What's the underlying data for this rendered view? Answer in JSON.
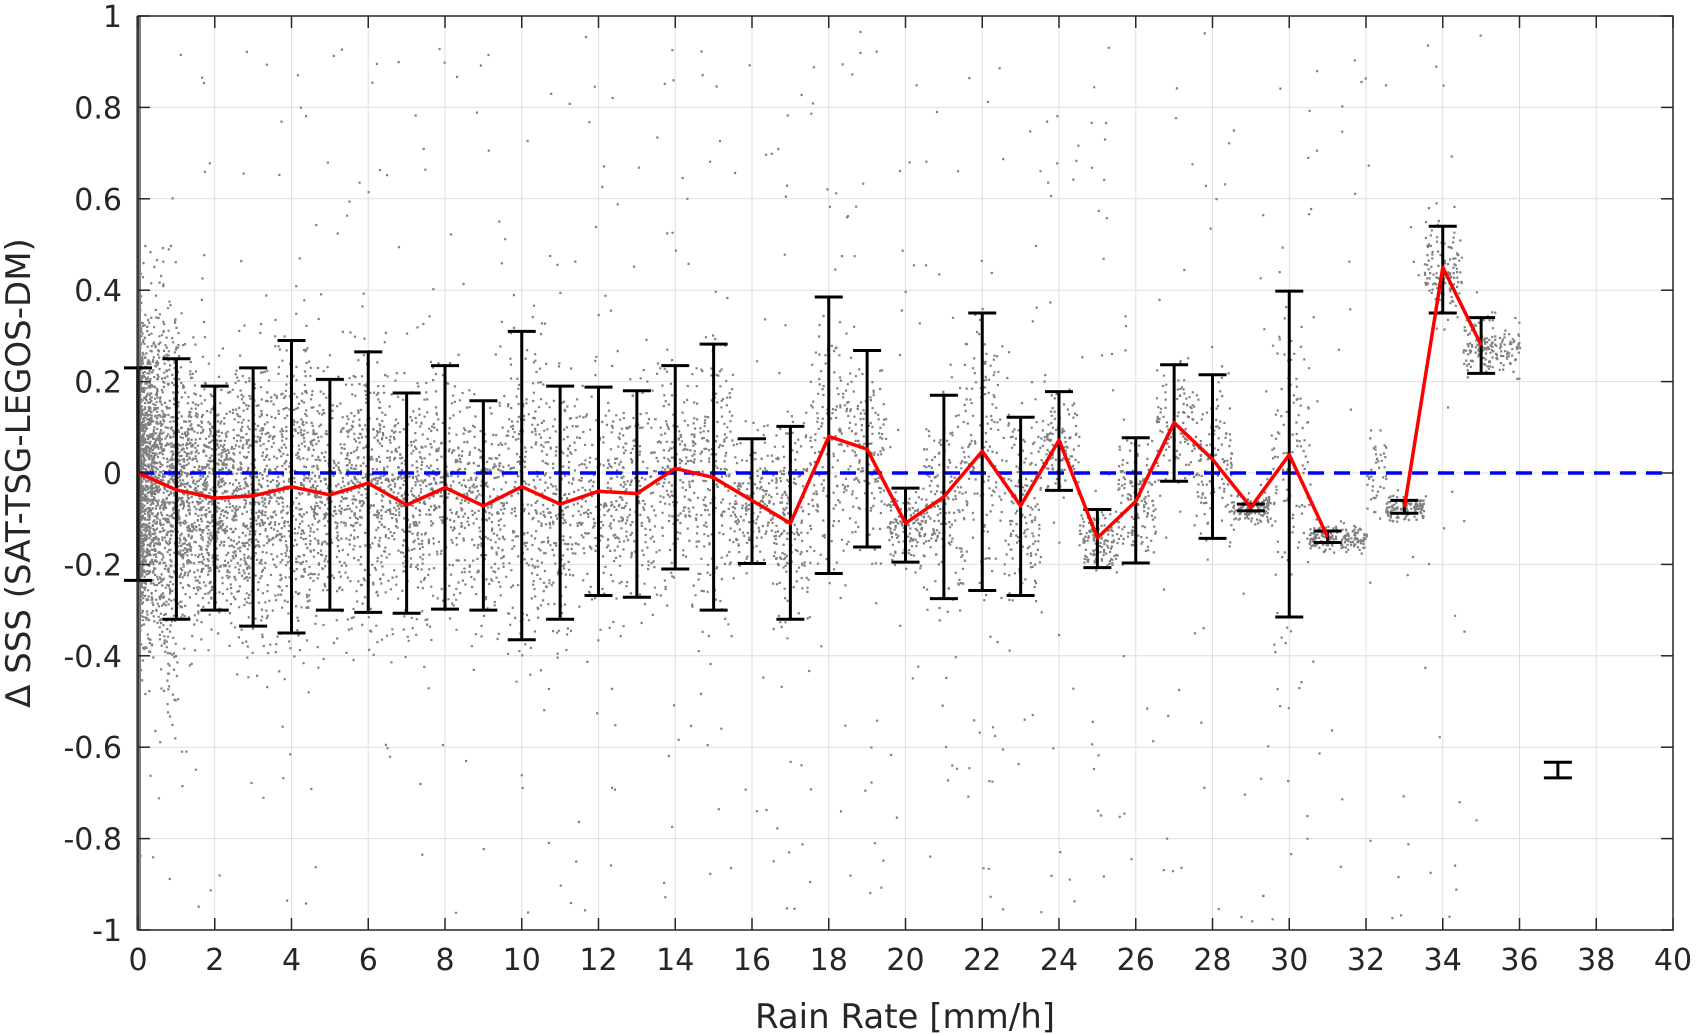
{
  "chart_data": {
    "type": "scatter",
    "xlabel": "Rain Rate [mm/h]",
    "ylabel": "Δ SSS (SAT-TSG-LEGOS-DM)",
    "xlim": [
      0,
      40
    ],
    "ylim": [
      -1,
      1
    ],
    "xticks": [
      "0",
      "2",
      "4",
      "6",
      "8",
      "10",
      "12",
      "14",
      "16",
      "18",
      "20",
      "22",
      "24",
      "26",
      "28",
      "30",
      "32",
      "34",
      "36",
      "38",
      "40"
    ],
    "yticks": [
      "1",
      "0.8",
      "0.6",
      "0.4",
      "0.2",
      "0",
      "-0.2",
      "-0.4",
      "-0.6",
      "-0.8",
      "-1"
    ],
    "grid": true,
    "colors": {
      "scatter": "#808080",
      "mean": "#ff0000",
      "zero": "#0000ff",
      "errorbar": "#000000"
    },
    "reference_line": {
      "y": 0,
      "style": "dashed"
    },
    "series": [
      {
        "type": "line",
        "segments": [
          [
            [
              0,
              0.0
            ],
            [
              1,
              -0.037
            ],
            [
              2,
              -0.055
            ],
            [
              3,
              -0.05
            ],
            [
              4,
              -0.03
            ],
            [
              5,
              -0.048
            ],
            [
              6,
              -0.022
            ],
            [
              7,
              -0.07
            ],
            [
              8,
              -0.032
            ],
            [
              9,
              -0.072
            ],
            [
              10,
              -0.03
            ],
            [
              11,
              -0.068
            ],
            [
              12,
              -0.04
            ],
            [
              13,
              -0.045
            ],
            [
              14,
              0.01
            ],
            [
              15,
              -0.01
            ],
            [
              17,
              -0.11
            ],
            [
              18,
              0.08
            ],
            [
              19,
              0.052
            ],
            [
              20,
              -0.11
            ],
            [
              21,
              -0.052
            ],
            [
              22,
              0.048
            ],
            [
              23,
              -0.072
            ],
            [
              24,
              0.072
            ],
            [
              25,
              -0.142
            ],
            [
              26,
              -0.062
            ],
            [
              27,
              0.11
            ],
            [
              28,
              0.03
            ],
            [
              29,
              -0.075
            ],
            [
              30,
              0.04
            ],
            [
              31,
              -0.14
            ]
          ],
          [
            [
              33,
              -0.075
            ],
            [
              34,
              0.45
            ],
            [
              35,
              0.28
            ]
          ]
        ]
      },
      {
        "type": "errorbar",
        "bars": [
          {
            "x": 0,
            "low": -0.235,
            "high": 0.23
          },
          {
            "x": 1,
            "low": -0.32,
            "high": 0.25
          },
          {
            "x": 2,
            "low": -0.3,
            "high": 0.19
          },
          {
            "x": 3,
            "low": -0.335,
            "high": 0.23
          },
          {
            "x": 4,
            "low": -0.35,
            "high": 0.29
          },
          {
            "x": 5,
            "low": -0.3,
            "high": 0.205
          },
          {
            "x": 6,
            "low": -0.305,
            "high": 0.265
          },
          {
            "x": 7,
            "low": -0.307,
            "high": 0.175
          },
          {
            "x": 8,
            "low": -0.298,
            "high": 0.235
          },
          {
            "x": 9,
            "low": -0.3,
            "high": 0.158
          },
          {
            "x": 10,
            "low": -0.365,
            "high": 0.31
          },
          {
            "x": 11,
            "low": -0.32,
            "high": 0.19
          },
          {
            "x": 12,
            "low": -0.268,
            "high": 0.188
          },
          {
            "x": 13,
            "low": -0.272,
            "high": 0.18
          },
          {
            "x": 14,
            "low": -0.21,
            "high": 0.235
          },
          {
            "x": 15,
            "low": -0.3,
            "high": 0.282
          },
          {
            "x": 16,
            "low": -0.198,
            "high": 0.075
          },
          {
            "x": 17,
            "low": -0.32,
            "high": 0.102
          },
          {
            "x": 18,
            "low": -0.22,
            "high": 0.385
          },
          {
            "x": 19,
            "low": -0.162,
            "high": 0.268
          },
          {
            "x": 20,
            "low": -0.195,
            "high": -0.033
          },
          {
            "x": 21,
            "low": -0.275,
            "high": 0.17
          },
          {
            "x": 22,
            "low": -0.257,
            "high": 0.35
          },
          {
            "x": 23,
            "low": -0.268,
            "high": 0.122
          },
          {
            "x": 24,
            "low": -0.038,
            "high": 0.178
          },
          {
            "x": 25,
            "low": -0.207,
            "high": -0.08
          },
          {
            "x": 26,
            "low": -0.197,
            "high": 0.077
          },
          {
            "x": 27,
            "low": -0.018,
            "high": 0.237
          },
          {
            "x": 28,
            "low": -0.143,
            "high": 0.215
          },
          {
            "x": 29,
            "low": -0.083,
            "high": -0.068
          },
          {
            "x": 30,
            "low": -0.315,
            "high": 0.398
          },
          {
            "x": 31,
            "low": -0.152,
            "high": -0.127
          },
          {
            "x": 33,
            "low": -0.088,
            "high": -0.06
          },
          {
            "x": 34,
            "low": 0.35,
            "high": 0.54
          },
          {
            "x": 35,
            "low": 0.218,
            "high": 0.34
          },
          {
            "x": 37,
            "low": -0.667,
            "high": -0.633
          }
        ]
      }
    ]
  }
}
